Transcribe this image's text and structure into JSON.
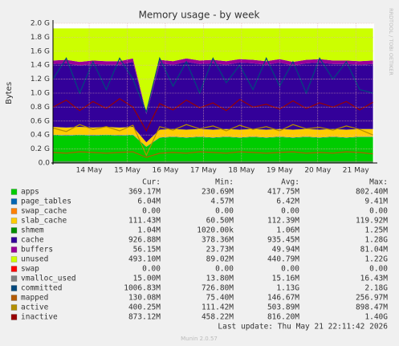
{
  "chart_data": {
    "type": "area",
    "title": "Memory usage - by week",
    "y_label": "Bytes",
    "side_label": "RRDTOOL / TOBI OETIKER",
    "x": [
      13.55,
      13.9,
      14.25,
      14.6,
      14.95,
      15.3,
      15.65,
      16.0,
      16.35,
      16.7,
      17.05,
      17.4,
      17.75,
      18.1,
      18.45,
      18.8,
      19.15,
      19.5,
      19.85,
      20.2,
      20.55,
      20.9,
      21.25,
      21.6,
      21.95
    ],
    "xlim": [
      13.55,
      21.98
    ],
    "xticks": [
      {
        "value": 14.5,
        "label": "14 May"
      },
      {
        "value": 15.5,
        "label": "15 May"
      },
      {
        "value": 16.5,
        "label": "16 May"
      },
      {
        "value": 17.5,
        "label": "17 May"
      },
      {
        "value": 18.5,
        "label": "18 May"
      },
      {
        "value": 19.5,
        "label": "19 May"
      },
      {
        "value": 20.5,
        "label": "20 May"
      },
      {
        "value": 21.5,
        "label": "21 May"
      }
    ],
    "ylim": [
      0,
      2.0
    ],
    "yticks": [
      {
        "value": 0,
        "label": "0.0"
      },
      {
        "value": 0.2,
        "label": "0.2 G"
      },
      {
        "value": 0.4,
        "label": "0.4 G"
      },
      {
        "value": 0.6,
        "label": "0.6 G"
      },
      {
        "value": 0.8,
        "label": "0.8 G"
      },
      {
        "value": 1.0,
        "label": "1.0 G"
      },
      {
        "value": 1.2,
        "label": "1.2 G"
      },
      {
        "value": 1.4,
        "label": "1.4 G"
      },
      {
        "value": 1.6,
        "label": "1.6 G"
      },
      {
        "value": 1.8,
        "label": "1.8 G"
      },
      {
        "value": 2.0,
        "label": "2.0 G"
      }
    ],
    "grid": true,
    "stats_headers": [
      "Cur:",
      "Min:",
      "Avg:",
      "Max:"
    ],
    "series": [
      {
        "name": "apps",
        "color": "#00CC00",
        "kind": "area",
        "stats": [
          "369.17M",
          "230.69M",
          "417.75M",
          "802.40M"
        ],
        "values": [
          0.4,
          0.39,
          0.4,
          0.39,
          0.4,
          0.39,
          0.4,
          0.23,
          0.36,
          0.37,
          0.36,
          0.37,
          0.36,
          0.37,
          0.36,
          0.37,
          0.36,
          0.37,
          0.36,
          0.37,
          0.36,
          0.37,
          0.36,
          0.37,
          0.37
        ]
      },
      {
        "name": "page_tables",
        "color": "#0066B3",
        "kind": "area",
        "stats": [
          "6.04M",
          "4.57M",
          "6.42M",
          "9.41M"
        ],
        "values": [
          0.006,
          0.006,
          0.006,
          0.006,
          0.006,
          0.006,
          0.006,
          0.005,
          0.006,
          0.006,
          0.006,
          0.006,
          0.006,
          0.006,
          0.006,
          0.006,
          0.006,
          0.006,
          0.006,
          0.006,
          0.006,
          0.006,
          0.006,
          0.006,
          0.006
        ]
      },
      {
        "name": "swap_cache",
        "color": "#FF8000",
        "kind": "area",
        "stats": [
          "0.00",
          "0.00",
          "0.00",
          "0.00"
        ],
        "values": [
          0,
          0,
          0,
          0,
          0,
          0,
          0,
          0,
          0,
          0,
          0,
          0,
          0,
          0,
          0,
          0,
          0,
          0,
          0,
          0,
          0,
          0,
          0,
          0,
          0
        ]
      },
      {
        "name": "slab_cache",
        "color": "#FFCC00",
        "kind": "area",
        "stats": [
          "111.43M",
          "60.50M",
          "112.39M",
          "119.92M"
        ],
        "values": [
          0.11,
          0.11,
          0.11,
          0.11,
          0.11,
          0.11,
          0.11,
          0.06,
          0.11,
          0.11,
          0.11,
          0.11,
          0.11,
          0.11,
          0.11,
          0.11,
          0.11,
          0.11,
          0.11,
          0.11,
          0.11,
          0.11,
          0.11,
          0.11,
          0.11
        ]
      },
      {
        "name": "shmem",
        "color": "#008F00",
        "kind": "area",
        "stats": [
          "1.04M",
          "1020.00k",
          "1.06M",
          "1.25M"
        ],
        "values": [
          0.001,
          0.001,
          0.001,
          0.001,
          0.001,
          0.001,
          0.001,
          0.001,
          0.001,
          0.001,
          0.001,
          0.001,
          0.001,
          0.001,
          0.001,
          0.001,
          0.001,
          0.001,
          0.001,
          0.001,
          0.001,
          0.001,
          0.001,
          0.001,
          0.001
        ]
      },
      {
        "name": "cache",
        "color": "#330099",
        "kind": "area",
        "stats": [
          "926.88M",
          "378.36M",
          "935.45M",
          "1.28G"
        ],
        "values": [
          0.9,
          0.92,
          0.88,
          0.91,
          0.89,
          0.9,
          0.93,
          0.4,
          0.95,
          0.92,
          0.97,
          0.93,
          0.95,
          0.92,
          0.96,
          0.94,
          0.93,
          0.95,
          0.92,
          0.94,
          0.96,
          0.93,
          0.94,
          0.92,
          0.93
        ]
      },
      {
        "name": "buffers",
        "color": "#990099",
        "kind": "area",
        "stats": [
          "56.15M",
          "23.73M",
          "49.94M",
          "81.04M"
        ],
        "values": [
          0.05,
          0.05,
          0.05,
          0.05,
          0.05,
          0.05,
          0.05,
          0.02,
          0.05,
          0.05,
          0.05,
          0.05,
          0.05,
          0.05,
          0.05,
          0.05,
          0.05,
          0.05,
          0.05,
          0.05,
          0.05,
          0.05,
          0.05,
          0.05,
          0.05
        ]
      },
      {
        "name": "unused",
        "color": "#CCFF00",
        "kind": "area",
        "stats": [
          "493.10M",
          "89.02M",
          "440.79M",
          "1.22G"
        ],
        "values": [
          0.46,
          0.45,
          0.48,
          0.46,
          0.47,
          0.47,
          0.43,
          1.21,
          0.45,
          0.47,
          0.43,
          0.46,
          0.45,
          0.47,
          0.44,
          0.45,
          0.47,
          0.44,
          0.48,
          0.45,
          0.44,
          0.46,
          0.46,
          0.47,
          0.46
        ]
      },
      {
        "name": "swap",
        "color": "#FF0000",
        "kind": "area",
        "stats": [
          "0.00",
          "0.00",
          "0.00",
          "0.00"
        ],
        "values": [
          0,
          0,
          0,
          0,
          0,
          0,
          0,
          0,
          0,
          0,
          0,
          0,
          0,
          0,
          0,
          0,
          0,
          0,
          0,
          0,
          0,
          0,
          0,
          0,
          0
        ]
      },
      {
        "name": "vmalloc_used",
        "color": "#808080",
        "kind": "line",
        "stats": [
          "15.00M",
          "13.80M",
          "15.16M",
          "16.43M"
        ],
        "values": [
          0.015,
          0.015,
          0.015,
          0.015,
          0.015,
          0.015,
          0.015,
          0.014,
          0.015,
          0.015,
          0.015,
          0.015,
          0.015,
          0.015,
          0.015,
          0.015,
          0.015,
          0.015,
          0.015,
          0.015,
          0.015,
          0.015,
          0.015,
          0.015,
          0.015
        ]
      },
      {
        "name": "committed",
        "color": "#00487D",
        "kind": "line",
        "stats": [
          "1006.83M",
          "726.80M",
          "1.13G",
          "2.18G"
        ],
        "values": [
          1.2,
          1.5,
          1.0,
          1.45,
          1.05,
          1.5,
          1.2,
          0.73,
          1.5,
          1.1,
          1.45,
          1.0,
          1.5,
          1.15,
          1.4,
          1.05,
          1.5,
          1.1,
          1.45,
          1.0,
          1.5,
          1.2,
          1.45,
          1.05,
          1.0
        ]
      },
      {
        "name": "mapped",
        "color": "#B35A00",
        "kind": "line",
        "stats": [
          "130.08M",
          "75.40M",
          "146.67M",
          "256.97M"
        ],
        "values": [
          0.15,
          0.14,
          0.16,
          0.15,
          0.14,
          0.15,
          0.16,
          0.08,
          0.14,
          0.15,
          0.14,
          0.16,
          0.15,
          0.14,
          0.16,
          0.15,
          0.14,
          0.15,
          0.16,
          0.14,
          0.15,
          0.14,
          0.16,
          0.15,
          0.13
        ]
      },
      {
        "name": "active",
        "color": "#B38F00",
        "kind": "line",
        "stats": [
          "400.25M",
          "111.42M",
          "503.89M",
          "898.47M"
        ],
        "values": [
          0.5,
          0.45,
          0.55,
          0.48,
          0.52,
          0.46,
          0.54,
          0.11,
          0.52,
          0.47,
          0.55,
          0.49,
          0.53,
          0.46,
          0.54,
          0.48,
          0.52,
          0.46,
          0.55,
          0.49,
          0.51,
          0.47,
          0.53,
          0.48,
          0.4
        ]
      },
      {
        "name": "inactive",
        "color": "#990000",
        "kind": "line",
        "stats": [
          "873.12M",
          "458.22M",
          "816.20M",
          "1.40G"
        ],
        "values": [
          0.8,
          0.9,
          0.75,
          0.88,
          0.78,
          0.92,
          0.8,
          0.46,
          0.85,
          0.76,
          0.9,
          0.79,
          0.86,
          0.75,
          0.91,
          0.8,
          0.84,
          0.77,
          0.89,
          0.78,
          0.86,
          0.8,
          0.88,
          0.76,
          0.87
        ]
      }
    ],
    "last_update": "Last update: Thu May 21 22:11:42 2026",
    "footer": "Munin 2.0.57"
  }
}
